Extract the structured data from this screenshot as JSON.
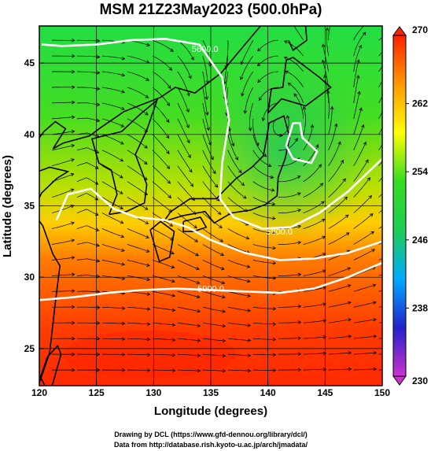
{
  "title": "MSM 21Z23May2023 (500.0hPa)",
  "xlabel": "Longitude (degrees)",
  "ylabel": "Latitude  (degrees)",
  "xticks": [
    120,
    125,
    130,
    135,
    140,
    145,
    150
  ],
  "yticks": [
    25,
    30,
    35,
    40,
    45
  ],
  "xlim": [
    120,
    150
  ],
  "ylim": [
    22.4,
    47.6
  ],
  "colorbar": {
    "min": 230,
    "max": 270,
    "ticks": [
      230,
      238,
      246,
      254,
      262,
      270
    ],
    "colors": [
      "#cc33cc",
      "#2222cc",
      "#00aaff",
      "#22cc55",
      "#33dd22",
      "#ffff00",
      "#ff9900",
      "#ff2200"
    ]
  },
  "contours": [
    {
      "label": "5600.0",
      "label_lon": 134.5,
      "label_lat": 46.0,
      "path": [
        [
          120.2,
          46.3
        ],
        [
          122,
          46.2
        ],
        [
          125,
          46.3
        ],
        [
          128,
          46.6
        ],
        [
          131,
          46.7
        ],
        [
          134,
          46.3
        ],
        [
          136,
          44
        ],
        [
          136.6,
          41
        ],
        [
          136,
          38
        ],
        [
          135.8,
          35.5
        ],
        [
          137,
          34.2
        ],
        [
          139.5,
          33.4
        ],
        [
          142,
          33.5
        ],
        [
          144.5,
          34.5
        ],
        [
          147,
          36
        ],
        [
          150,
          38.3
        ]
      ]
    },
    {
      "label": "5800.0",
      "label_lon": 141.0,
      "label_lat": 33.2,
      "path": [
        [
          121.5,
          34
        ],
        [
          122.5,
          35.8
        ],
        [
          124.5,
          36.2
        ],
        [
          126.5,
          34.8
        ],
        [
          128.5,
          34.2
        ],
        [
          131,
          34
        ],
        [
          133,
          33.5
        ],
        [
          135,
          32.6
        ],
        [
          138,
          31.7
        ],
        [
          141,
          31.2
        ],
        [
          144,
          31.3
        ],
        [
          147,
          31.7
        ],
        [
          150,
          32.5
        ]
      ]
    },
    {
      "label": "5900.0",
      "label_lon": 135.0,
      "label_lat": 29.2,
      "path": [
        [
          120,
          28.4
        ],
        [
          123,
          28.6
        ],
        [
          126,
          28.9
        ],
        [
          129,
          29.1
        ],
        [
          132,
          29.2
        ],
        [
          135,
          29.1
        ],
        [
          138,
          29
        ],
        [
          141,
          28.9
        ],
        [
          144,
          29.2
        ],
        [
          147,
          30
        ],
        [
          150,
          31
        ]
      ]
    },
    {
      "label": "",
      "label_lon": 142.0,
      "label_lat": 40.5,
      "path": [
        [
          142.2,
          40.8
        ],
        [
          142.8,
          40.8
        ],
        [
          143,
          39.8
        ],
        [
          144.3,
          38.8
        ],
        [
          143.8,
          38
        ],
        [
          142.2,
          38.3
        ],
        [
          141.6,
          39.2
        ],
        [
          142.2,
          40.8
        ]
      ]
    }
  ],
  "credits": {
    "line1": "Drawing by DCL (https://www.gfd-dennou.org/library/dcl/)",
    "line2": "Data from http://database.rish.kyoto-u.ac.jp/arch/jmadata/"
  }
}
